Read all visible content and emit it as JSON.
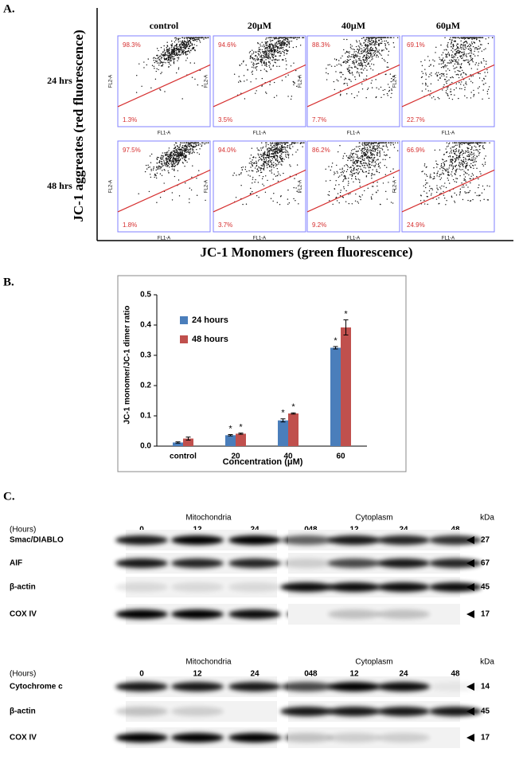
{
  "panel_a": {
    "label": "A.",
    "y_label": "JC-1 aggreates (red fluorescence)",
    "x_label": "JC-1 Monomers (green fluorescence)",
    "fl2": "FL2-A",
    "fl1": "FL1-A",
    "columns": [
      "control",
      "20μM",
      "40μM",
      "60μM"
    ],
    "rows": [
      {
        "label": "24 hrs",
        "upper": [
          "98.3%",
          "94.6%",
          "88.3%",
          "69.1%"
        ],
        "lower": [
          "1.3%",
          "3.5%",
          "7.7%",
          "22.7%"
        ]
      },
      {
        "label": "48 hrs",
        "upper": [
          "97.5%",
          "94.0%",
          "86.2%",
          "66.9%"
        ],
        "lower": [
          "1.8%",
          "3.7%",
          "9.2%",
          "24.9%"
        ]
      }
    ]
  },
  "chart_data": {
    "type": "bar",
    "panel_label": "B.",
    "y_label": "JC-1 monomer/JC-1 dimer ratio",
    "x_label": "Concentration (μM)",
    "categories": [
      "control",
      "20",
      "40",
      "60"
    ],
    "series": [
      {
        "name": "24 hours",
        "color": "#4a7ebb",
        "values": [
          0.012,
          0.036,
          0.085,
          0.325
        ],
        "errors": [
          0.002,
          0.002,
          0.005,
          0.004
        ],
        "annotations": [
          null,
          "*",
          "*",
          "*"
        ]
      },
      {
        "name": "48 hours",
        "color": "#c0504d",
        "values": [
          0.025,
          0.041,
          0.108,
          0.392
        ],
        "errors": [
          0.005,
          0.002,
          0.002,
          0.025
        ],
        "annotations": [
          null,
          "*",
          "*",
          "*"
        ]
      }
    ],
    "ylim": [
      0,
      0.5
    ],
    "yticks": [
      {
        "value": 0,
        "label": "0.0"
      },
      0.1,
      0.2,
      0.3,
      0.4,
      0.5
    ],
    "legend": "upper-left"
  },
  "panel_c": {
    "label": "C.",
    "blots": [
      {
        "compartments": [
          "Mitochondria",
          "Cytoplasm"
        ],
        "hours_label": "(Hours)",
        "hours": [
          0,
          12,
          24,
          48
        ],
        "kda_label": "kDa",
        "rows": [
          {
            "name": "Smac/DIABLO",
            "kda": 27
          },
          {
            "name": "AIF",
            "kda": 67
          },
          {
            "name": "β-actin",
            "kda": 45
          },
          {
            "name": "COX IV",
            "kda": 17
          }
        ]
      },
      {
        "compartments": [
          "Mitochondria",
          "Cytoplasm"
        ],
        "hours_label": "(Hours)",
        "hours": [
          0,
          12,
          24,
          48
        ],
        "kda_label": "kDa",
        "rows": [
          {
            "name": "Cytochrome c",
            "kda": 14
          },
          {
            "name": "β-actin",
            "kda": 45
          },
          {
            "name": "COX IV",
            "kda": 17
          }
        ]
      }
    ]
  }
}
